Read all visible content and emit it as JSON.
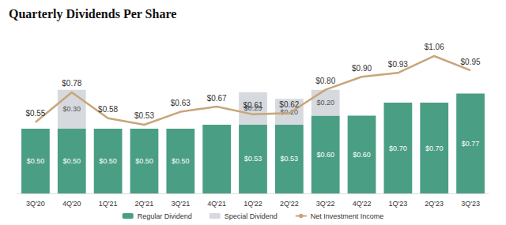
{
  "chart_data": {
    "type": "bar",
    "title": "Quarterly Dividends Per Share",
    "categories": [
      "3Q'20",
      "4Q'20",
      "1Q'21",
      "2Q'21",
      "3Q'21",
      "4Q'21",
      "1Q'22",
      "2Q'22",
      "3Q'22",
      "4Q'22",
      "1Q'23",
      "2Q'23",
      "3Q'23"
    ],
    "series": [
      {
        "name": "Regular Dividend",
        "type": "bar",
        "color": "#4a9e84",
        "values": [
          0.5,
          0.5,
          0.5,
          0.5,
          0.5,
          0.53,
          0.53,
          0.53,
          0.6,
          0.6,
          0.7,
          0.7,
          0.77
        ],
        "value_labels": [
          "$0.50",
          "$0.50",
          "$0.50",
          "$0.50",
          "$0.50",
          null,
          "$0.53",
          "$0.53",
          "$0.60",
          "$0.60",
          "$0.70",
          "$0.70",
          "$0.77"
        ]
      },
      {
        "name": "Special Dividend",
        "type": "bar",
        "color": "#d6d9de",
        "values": [
          null,
          0.3,
          null,
          null,
          null,
          null,
          0.25,
          0.2,
          0.2,
          null,
          null,
          null,
          null
        ],
        "value_labels": [
          null,
          "$0.30",
          null,
          null,
          null,
          null,
          "$0.25",
          "$0.20",
          "$0.20",
          null,
          null,
          null,
          null
        ]
      },
      {
        "name": "Net Investment Income",
        "type": "line",
        "color": "#c8a57a",
        "values": [
          0.55,
          0.78,
          0.58,
          0.53,
          0.63,
          0.67,
          0.61,
          0.62,
          0.8,
          0.9,
          0.93,
          1.06,
          0.95
        ],
        "value_labels": [
          "$0.55",
          "$0.78",
          "$0.58",
          "$0.53",
          "$0.63",
          "$0.67",
          "$0.61",
          "$0.62",
          "$0.80",
          "$0.90",
          "$0.93",
          "$1.06",
          "$0.95"
        ]
      }
    ],
    "stacked": true,
    "data_labels": true,
    "ylim": [
      0,
      1.2
    ],
    "yticks": [
      0,
      0.4,
      0.8,
      1.2
    ],
    "tick_labels": "x",
    "grid": false,
    "legend": "bottom"
  }
}
